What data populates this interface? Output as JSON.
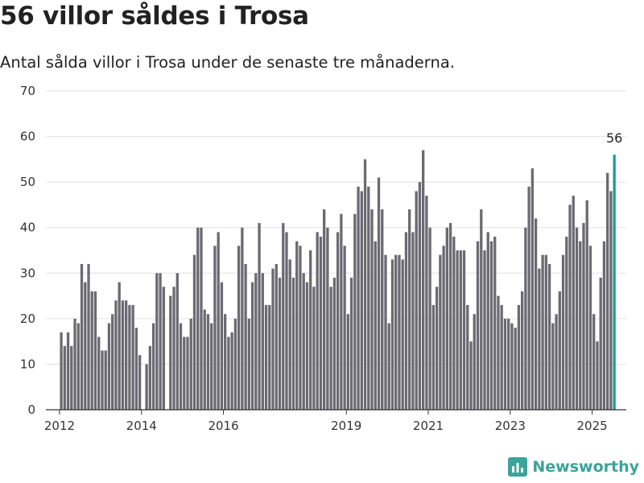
{
  "header": {
    "title": "56 villor såldes i Trosa",
    "subtitle": "Antal sålda villor i Trosa under de senaste tre månaderna."
  },
  "brand": {
    "name": "Newsworthy",
    "icon": "newsworthy-logo-icon",
    "color": "#3aa39a"
  },
  "colors": {
    "bar": "#6b6a72",
    "highlight": "#1a9e93",
    "grid": "#e2e2e2",
    "axis": "#333333"
  },
  "chart_data": {
    "type": "bar",
    "title": "56 villor såldes i Trosa",
    "subtitle": "Antal sålda villor i Trosa under de senaste tre månaderna.",
    "ylim": [
      0,
      70
    ],
    "yticks": [
      0,
      10,
      20,
      30,
      40,
      50,
      60,
      70
    ],
    "xticks": [
      "2012",
      "2014",
      "2016",
      "2019",
      "2021",
      "2023",
      "2025"
    ],
    "grid": true,
    "legend": "none",
    "x_range": [
      "2011-09",
      "2025-11"
    ],
    "start": "2012-01",
    "highlight_label": "56",
    "values": [
      17,
      14,
      17,
      14,
      20,
      19,
      32,
      28,
      32,
      26,
      26,
      16,
      13,
      13,
      19,
      21,
      24,
      28,
      24,
      24,
      23,
      23,
      18,
      12,
      null,
      10,
      14,
      19,
      30,
      30,
      27,
      null,
      25,
      27,
      30,
      19,
      16,
      16,
      20,
      34,
      40,
      40,
      22,
      21,
      19,
      36,
      39,
      28,
      21,
      16,
      17,
      20,
      36,
      40,
      32,
      20,
      28,
      30,
      41,
      30,
      23,
      23,
      31,
      32,
      29,
      41,
      39,
      33,
      29,
      37,
      36,
      30,
      28,
      35,
      27,
      39,
      38,
      44,
      40,
      27,
      29,
      39,
      43,
      36,
      21,
      29,
      43,
      49,
      48,
      55,
      49,
      44,
      37,
      51,
      44,
      34,
      19,
      33,
      34,
      34,
      33,
      39,
      44,
      39,
      48,
      50,
      57,
      47,
      40,
      23,
      27,
      34,
      36,
      40,
      41,
      38,
      35,
      35,
      35,
      23,
      15,
      21,
      37,
      44,
      35,
      39,
      37,
      38,
      25,
      23,
      20,
      20,
      19,
      18,
      23,
      26,
      40,
      49,
      53,
      42,
      31,
      34,
      34,
      32,
      19,
      21,
      26,
      34,
      38,
      45,
      47,
      40,
      37,
      41,
      46,
      36,
      21,
      15,
      29,
      37,
      52,
      48,
      56
    ]
  }
}
